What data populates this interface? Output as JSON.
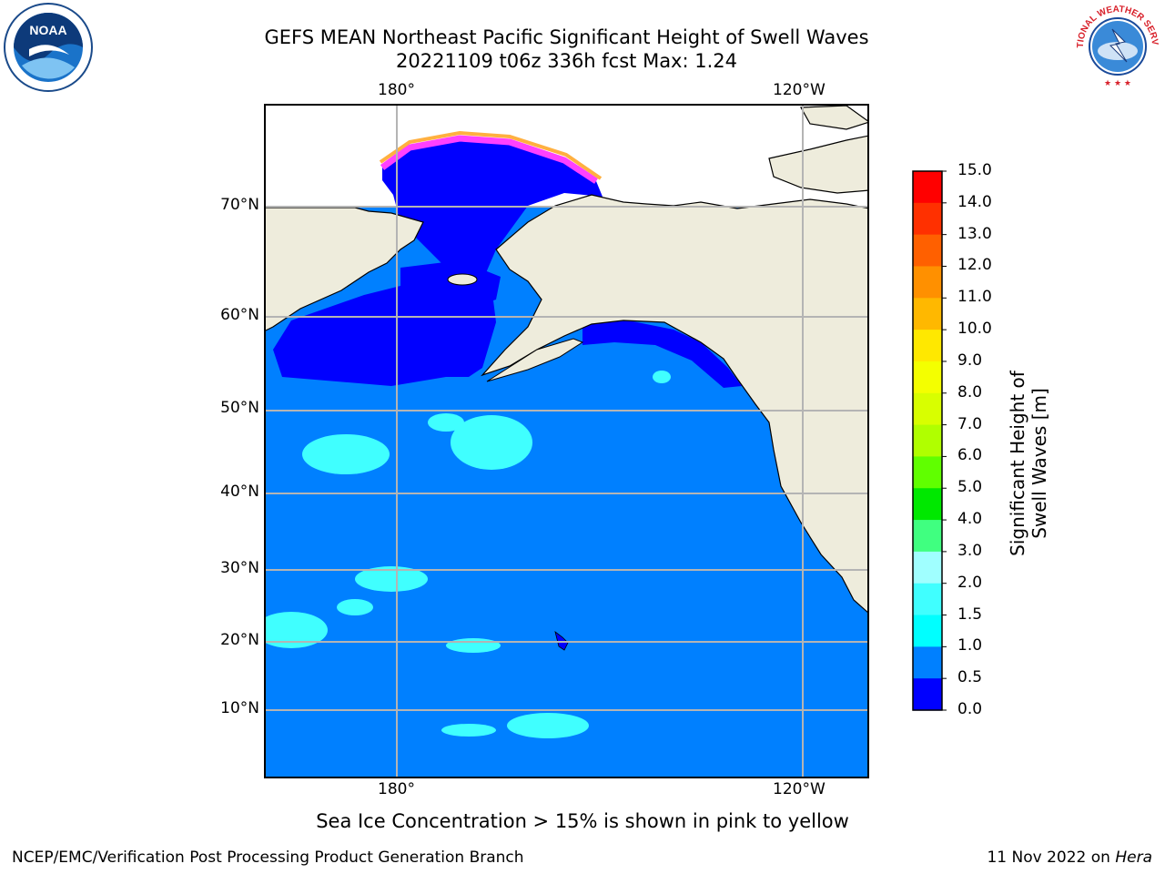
{
  "title": {
    "line1": "GEFS MEAN Northeast Pacific Significant Height of Swell Waves",
    "line2": "20221109 t06z 336h fcst   Max: 1.24"
  },
  "map": {
    "lon_labels": [
      "180°",
      "120°W"
    ],
    "lat_labels": [
      "70°N",
      "60°N",
      "50°N",
      "40°N",
      "30°N",
      "20°N",
      "10°N"
    ],
    "colors": {
      "ocean_low": "#0000ff",
      "ocean_mid": "#0080ff",
      "ocean_high": "#00ffff",
      "land": "#eeecdc",
      "grid": "#b4b4b4",
      "ice_pink": "#ff40ff",
      "ice_orange": "#ffb040"
    }
  },
  "colorbar": {
    "title": "Significant Height of Swell Waves [m]",
    "ticks": [
      "15.0",
      "14.0",
      "13.0",
      "12.0",
      "11.0",
      "10.0",
      "9.0",
      "8.0",
      "7.0",
      "6.0",
      "5.0",
      "4.0",
      "3.0",
      "2.0",
      "1.5",
      "1.0",
      "0.5",
      "0.0"
    ],
    "colors": [
      "#ff0000",
      "#ff3000",
      "#ff6000",
      "#ff9000",
      "#ffb800",
      "#ffe800",
      "#f4ff00",
      "#d8ff00",
      "#b0ff00",
      "#60ff00",
      "#00e800",
      "#40ff80",
      "#a0ffff",
      "#40ffff",
      "#00ffff",
      "#0080ff",
      "#0000ff"
    ]
  },
  "caption": "Sea Ice Concentration > 15% is shown in pink to yellow",
  "footer": {
    "credit": "NCEP/EMC/Verification Post Processing Product Generation Branch",
    "date": "11 Nov 2022 on ",
    "host": "Hera"
  },
  "logos": {
    "left": "NOAA",
    "right": "NATIONAL WEATHER SERVICE"
  }
}
